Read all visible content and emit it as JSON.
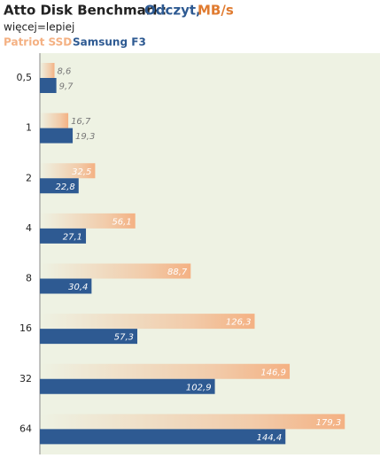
{
  "chart_data": {
    "type": "barh",
    "title": [
      "Atto Disk Benchmark:",
      "Odczyt,",
      "MB/s"
    ],
    "subtitle": "więcej=lepiej",
    "categories": [
      "0,5",
      "1",
      "2",
      "4",
      "8",
      "16",
      "32",
      "64"
    ],
    "series": [
      {
        "name": "Patriot SSD",
        "color": "#f4b183",
        "values": [
          8.6,
          16.7,
          32.5,
          56.1,
          88.7,
          126.3,
          146.9,
          179.3
        ],
        "value_labels": [
          "8,6",
          "16,7",
          "32,5",
          "56,1",
          "88,7",
          "126,3",
          "146,9",
          "179,3"
        ]
      },
      {
        "name": "Samsung F3",
        "color": "#2e5a92",
        "values": [
          9.7,
          19.3,
          22.8,
          27.1,
          30.4,
          57.3,
          102.9,
          144.4
        ],
        "value_labels": [
          "9,7",
          "19,3",
          "22,8",
          "27,1",
          "30,4",
          "57,3",
          "102,9",
          "144,4"
        ]
      }
    ],
    "xlim": [
      0,
      200
    ]
  }
}
